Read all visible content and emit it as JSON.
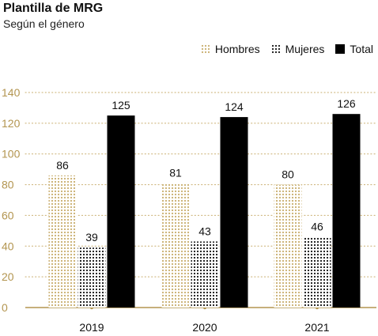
{
  "header": {
    "title": "Plantilla de MRG",
    "subtitle": "Según el género"
  },
  "colors": {
    "hombres": "#c9ae6e",
    "mujeres": "#111111",
    "total": "#000000",
    "axis": "#b39550",
    "grid": "#c9ae6e"
  },
  "chart_data": {
    "type": "bar",
    "title": "Plantilla de MRG",
    "subtitle": "Según el género",
    "categories": [
      "2019",
      "2020",
      "2021"
    ],
    "series": [
      {
        "name": "Hombres",
        "values": [
          86,
          81,
          80
        ],
        "pattern": "dotted",
        "color": "#c9ae6e"
      },
      {
        "name": "Mujeres",
        "values": [
          39,
          43,
          46
        ],
        "pattern": "dotted",
        "color": "#111111"
      },
      {
        "name": "Total",
        "values": [
          125,
          124,
          126
        ],
        "pattern": "solid",
        "color": "#000000"
      }
    ],
    "yticks": [
      "0",
      "20",
      "40",
      "60",
      "80",
      "100",
      "120",
      "140"
    ],
    "ylim": [
      0,
      140
    ],
    "grid": true,
    "legend": "top-right"
  }
}
